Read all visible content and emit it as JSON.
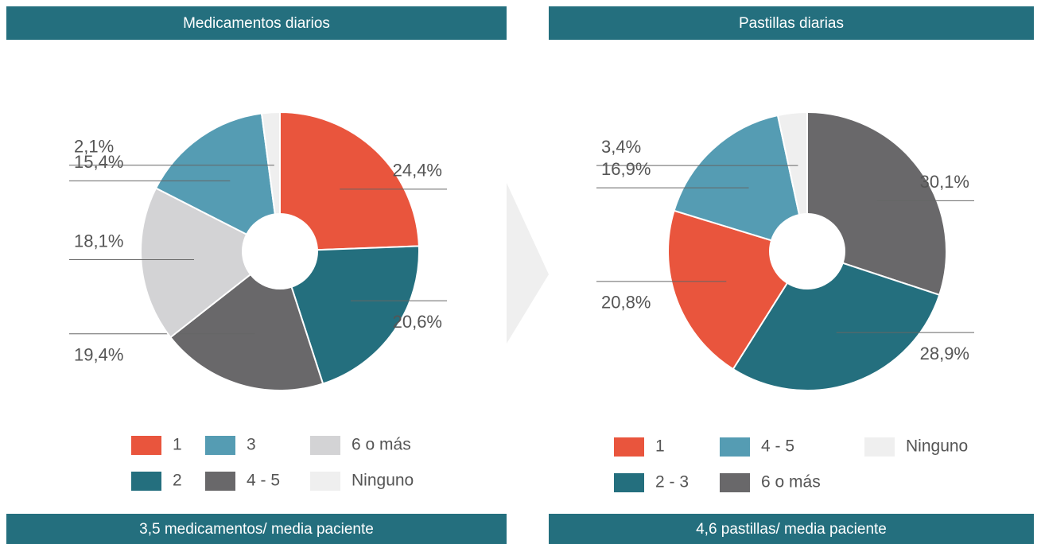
{
  "chart_data": [
    {
      "type": "pie",
      "title": "Medicamentos diarios",
      "caption": "3,5 medicamentos/ media paciente",
      "categories": [
        "1",
        "2",
        "4 - 5",
        "6 o más",
        "3",
        "Ninguno"
      ],
      "values": [
        24.4,
        20.6,
        19.4,
        18.1,
        15.4,
        2.1
      ],
      "value_labels": [
        "24,4%",
        "20,6%",
        "19,4%",
        "18,1%",
        "15,4%",
        "2,1%"
      ],
      "colors": [
        "#e9553d",
        "#246f7e",
        "#69686a",
        "#d3d3d5",
        "#559cb3",
        "#efefef"
      ]
    },
    {
      "type": "pie",
      "title": "Pastillas diarias",
      "caption": "4,6 pastillas/ media paciente",
      "categories": [
        "6 o más",
        "2 - 3",
        "1",
        "4 - 5",
        "Ninguno"
      ],
      "values": [
        30.1,
        28.9,
        20.8,
        16.9,
        3.4
      ],
      "value_labels": [
        "30,1%",
        "28,9%",
        "20,8%",
        "16,9%",
        "3,4%"
      ],
      "colors": [
        "#69686a",
        "#246f7e",
        "#e9553d",
        "#559cb3",
        "#efefef"
      ]
    }
  ]
}
